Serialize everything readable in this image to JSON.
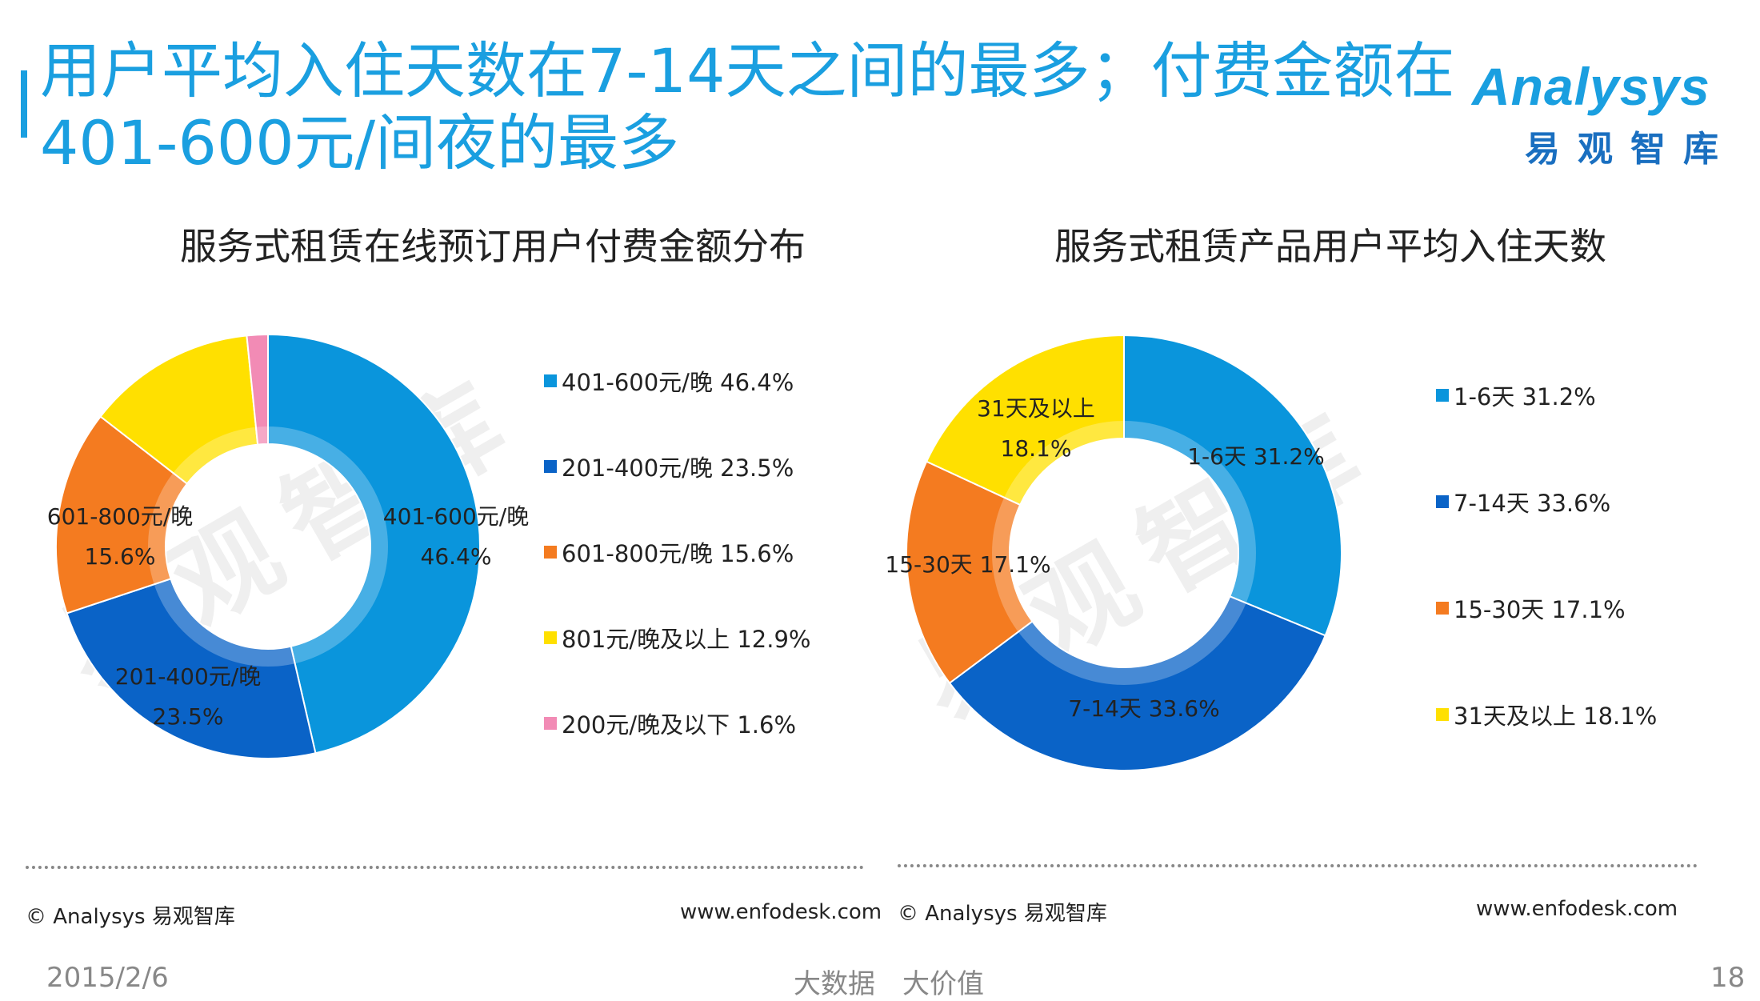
{
  "header": {
    "title_line1": "用户平均入住天数在7-14天之间的最多；付费金额在",
    "title_line2": "401-600元/间夜的最多",
    "logo_word": "Analysys",
    "logo_cn": "易观智库",
    "accent_color": "#1a9fe0"
  },
  "watermark_text": "易观智库",
  "chart_data": [
    {
      "type": "pie",
      "variant": "donut",
      "title": "服务式租赁在线预订用户付费金额分布",
      "slices": [
        {
          "label": "401-600元/晚",
          "value": 46.4,
          "display": "46.4%",
          "color": "#0a95dc"
        },
        {
          "label": "201-400元/晚",
          "value": 23.5,
          "display": "23.5%",
          "color": "#0a63c7"
        },
        {
          "label": "601-800元/晚",
          "value": 15.6,
          "display": "15.6%",
          "color": "#f47b20"
        },
        {
          "label": "801元/晚及以上",
          "value": 12.9,
          "display": "12.9%",
          "color": "#ffe000"
        },
        {
          "label": "200元/晚及以下",
          "value": 1.6,
          "display": "1.6%",
          "color": "#f28bb5"
        }
      ],
      "data_labels": [
        "401-600元/晚",
        "201-400元/晚",
        "601-800元/晚"
      ],
      "legend_position": "right"
    },
    {
      "type": "pie",
      "variant": "donut",
      "title": "服务式租赁产品用户平均入住天数",
      "slices": [
        {
          "label": "1-6天",
          "value": 31.2,
          "display": "31.2%",
          "color": "#0a95dc"
        },
        {
          "label": "7-14天",
          "value": 33.6,
          "display": "33.6%",
          "color": "#0a63c7"
        },
        {
          "label": "15-30天",
          "value": 17.1,
          "display": "17.1%",
          "color": "#f47b20"
        },
        {
          "label": "31天及以上",
          "value": 18.1,
          "display": "18.1%",
          "color": "#ffe000"
        }
      ],
      "data_labels": [
        "1-6天",
        "7-14天",
        "15-30天",
        "31天及以上"
      ],
      "legend_position": "right"
    }
  ],
  "source_left": {
    "copyright": "© Analysys 易观智库",
    "url": "www.enfodesk.com"
  },
  "source_right": {
    "copyright": "© Analysys 易观智库",
    "url": "www.enfodesk.com"
  },
  "footer": {
    "date": "2015/2/6",
    "slogan": "大数据　大价值",
    "page_number": "18"
  }
}
